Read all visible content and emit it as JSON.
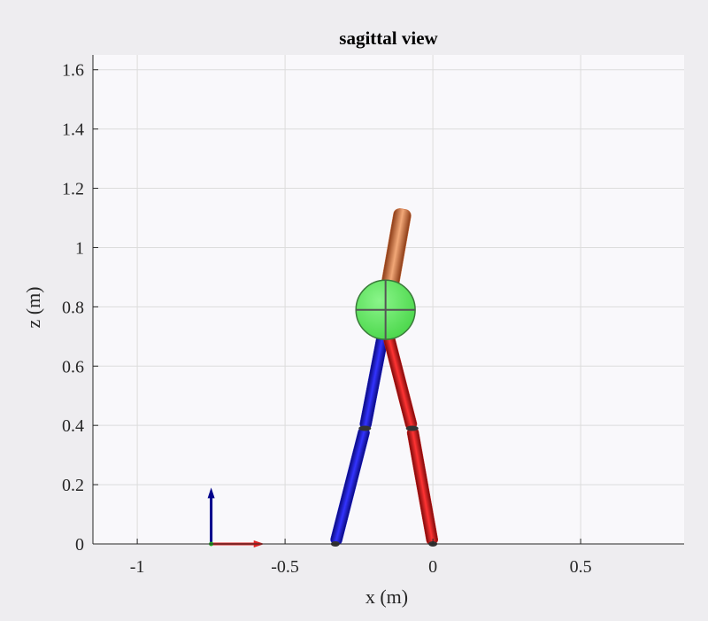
{
  "chart_data": {
    "type": "scatter",
    "title": "sagittal view",
    "xlabel": "x (m)",
    "ylabel": "z (m)",
    "xlim": [
      -1.15,
      0.85
    ],
    "ylim": [
      0,
      1.65
    ],
    "xticks": [
      -1,
      -0.5,
      0,
      0.5
    ],
    "xtick_labels": [
      "-1",
      "-0.5",
      "0",
      "0.5"
    ],
    "yticks": [
      0,
      0.2,
      0.4,
      0.6,
      0.8,
      1,
      1.2,
      1.4,
      1.6
    ],
    "ytick_labels": [
      "0",
      "0.2",
      "0.4",
      "0.6",
      "0.8",
      "1",
      "1.2",
      "1.4",
      "1.6"
    ],
    "grid": true,
    "background": "#f9f8fb",
    "segments": [
      {
        "name": "torso",
        "color": "#c8693a",
        "points": [
          [
            -0.16,
            0.79
          ],
          [
            -0.1,
            1.13
          ]
        ]
      },
      {
        "name": "left-thigh",
        "color": "#1515cc",
        "points": [
          [
            -0.17,
            0.7
          ],
          [
            -0.23,
            0.39
          ]
        ]
      },
      {
        "name": "left-shank",
        "color": "#1515cc",
        "points": [
          [
            -0.23,
            0.39
          ],
          [
            -0.33,
            0.0
          ]
        ]
      },
      {
        "name": "right-thigh",
        "color": "#cc1515",
        "points": [
          [
            -0.15,
            0.7
          ],
          [
            -0.07,
            0.39
          ]
        ]
      },
      {
        "name": "right-shank",
        "color": "#cc1515",
        "points": [
          [
            -0.07,
            0.39
          ],
          [
            0.0,
            0.0
          ]
        ]
      }
    ],
    "knees": [
      [
        -0.23,
        0.39
      ],
      [
        -0.07,
        0.39
      ]
    ],
    "hip": {
      "x": -0.16,
      "z": 0.79,
      "r": 0.1,
      "color": "#5de85d"
    },
    "axes_triad": {
      "origin": [
        -0.75,
        0.0
      ],
      "z_axis": {
        "color": "#00008b",
        "end": [
          -0.75,
          0.19
        ]
      },
      "x_axis": {
        "color": "#dd2222",
        "end": [
          -0.57,
          0.0
        ]
      }
    }
  }
}
